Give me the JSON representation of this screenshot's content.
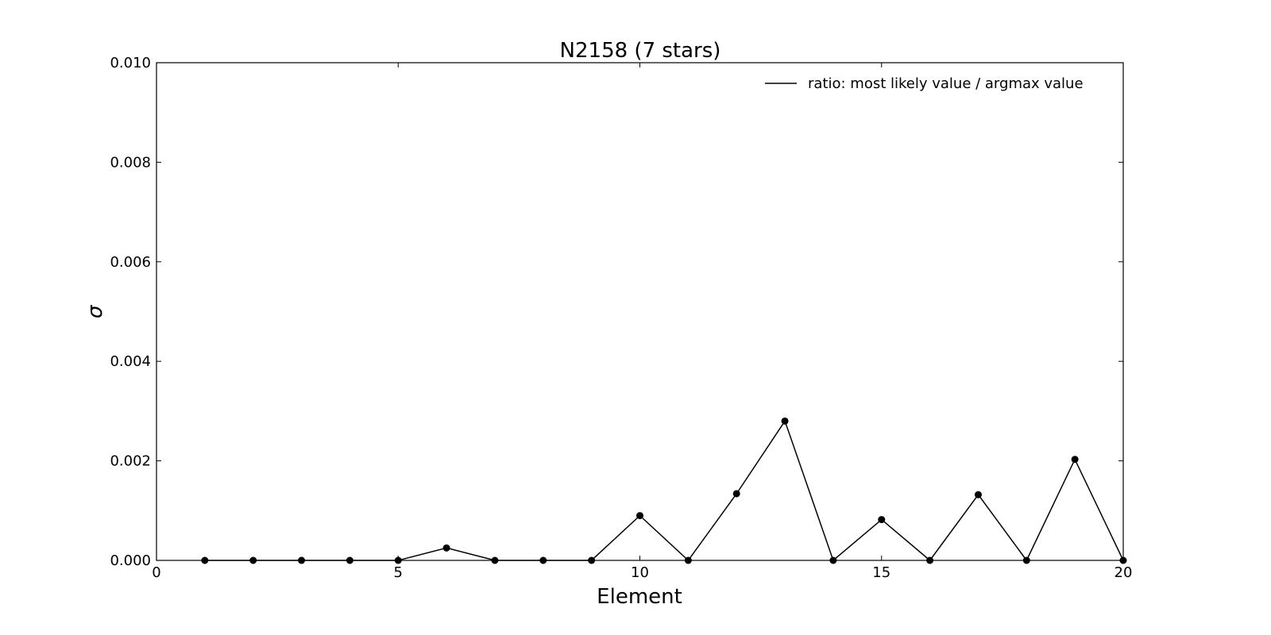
{
  "chart_data": {
    "type": "line",
    "title": "N2158 (7 stars)",
    "xlabel": "Element",
    "ylabel": "σ",
    "xlim": [
      0,
      20
    ],
    "ylim": [
      0,
      0.01
    ],
    "x_ticks": [
      "0",
      "5",
      "10",
      "15",
      "20"
    ],
    "y_ticks": [
      "0.000",
      "0.002",
      "0.004",
      "0.006",
      "0.008",
      "0.010"
    ],
    "grid": false,
    "legend_position": "top-right",
    "series": [
      {
        "name": "ratio: most likely value / argmax value",
        "color": "#000000",
        "marker": "circle",
        "x": [
          1,
          2,
          3,
          4,
          5,
          6,
          7,
          8,
          9,
          10,
          11,
          12,
          13,
          14,
          15,
          16,
          17,
          18,
          19,
          20
        ],
        "y": [
          0,
          0,
          0,
          0,
          0,
          0.00025,
          0,
          0,
          0,
          0.0009,
          0,
          0.00134,
          0.0028,
          0,
          0.00082,
          0,
          0.00132,
          0,
          0.00203,
          0
        ]
      }
    ]
  }
}
